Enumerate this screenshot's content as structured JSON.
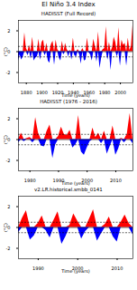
{
  "title": "El Niño 3.4 Index",
  "chart_data": [
    {
      "type": "area",
      "title": "HADISST (Full Record)",
      "x_label": "Time (years)",
      "y_label": "(°C)",
      "x": [
        1870,
        1872,
        1874,
        1876,
        1878,
        1880,
        1882,
        1884,
        1886,
        1888,
        1890,
        1892,
        1894,
        1896,
        1898,
        1900,
        1902,
        1904,
        1906,
        1908,
        1910,
        1912,
        1914,
        1916,
        1918,
        1920,
        1922,
        1924,
        1926,
        1928,
        1930,
        1932,
        1934,
        1936,
        1938,
        1940,
        1942,
        1944,
        1946,
        1948,
        1950,
        1952,
        1954,
        1956,
        1958,
        1960,
        1962,
        1964,
        1966,
        1968,
        1970,
        1972,
        1974,
        1976,
        1978,
        1980,
        1982,
        1984,
        1986,
        1988,
        1990,
        1992,
        1994,
        1996,
        1998,
        2000,
        2002,
        2004,
        2006,
        2008,
        2010,
        2012,
        2014,
        2016
      ],
      "values": [
        -0.9,
        -0.3,
        -0.8,
        -0.5,
        1.8,
        0.3,
        -0.4,
        0.6,
        -0.7,
        1.4,
        -0.9,
        -0.6,
        -0.5,
        1.2,
        -0.8,
        0.9,
        1.1,
        -0.4,
        0.8,
        -0.9,
        -1.1,
        0.7,
        1.0,
        -1.3,
        1.1,
        0.2,
        -0.6,
        -0.9,
        1.0,
        -0.3,
        0.8,
        0.2,
        -0.5,
        0.1,
        -0.8,
        1.3,
        -0.4,
        -0.5,
        0.2,
        -0.3,
        -1.2,
        0.3,
        -0.9,
        -0.8,
        1.3,
        -0.1,
        -0.3,
        -0.9,
        1.2,
        0.5,
        -1.0,
        1.9,
        -1.6,
        -0.6,
        0.2,
        0.3,
        2.4,
        -0.8,
        0.9,
        -1.8,
        0.4,
        1.4,
        0.9,
        -0.5,
        2.3,
        -1.4,
        1.1,
        0.6,
        0.8,
        -1.4,
        1.3,
        0.1,
        0.5,
        2.5
      ],
      "thresholds": [
        -0.5,
        0.5
      ],
      "colors": [
        "#ff0000",
        "#0000ff"
      ],
      "xlim": [
        1870,
        2016
      ],
      "xticks": [
        1880,
        1900,
        1920,
        1940,
        1960,
        1980,
        2000
      ],
      "ylim": [
        -3,
        3
      ],
      "yticks": [
        -2,
        0,
        2
      ]
    },
    {
      "type": "area",
      "title": "HADISST (1976 - 2016)",
      "x_label": "Time (years)",
      "y_label": "(°C)",
      "x": [
        1976,
        1977,
        1978,
        1979,
        1980,
        1981,
        1982,
        1983,
        1984,
        1985,
        1986,
        1987,
        1988,
        1989,
        1990,
        1991,
        1992,
        1993,
        1994,
        1995,
        1996,
        1997,
        1998,
        1999,
        2000,
        2001,
        2002,
        2003,
        2004,
        2005,
        2006,
        2007,
        2008,
        2009,
        2010,
        2011,
        2012,
        2013,
        2014,
        2015,
        2016
      ],
      "values": [
        -0.3,
        0.6,
        -0.2,
        0.1,
        0.2,
        -0.3,
        2.1,
        0.6,
        -0.6,
        -0.7,
        0.8,
        1.4,
        -1.8,
        -0.5,
        0.3,
        1.2,
        0.5,
        0.4,
        0.9,
        -0.8,
        -0.5,
        2.3,
        -1.2,
        -1.5,
        -0.8,
        -0.2,
        1.1,
        0.2,
        0.6,
        -0.4,
        0.8,
        -1.4,
        -0.7,
        1.3,
        -1.5,
        -0.9,
        0.1,
        -0.3,
        0.5,
        2.5,
        -0.4
      ],
      "thresholds": [
        -0.5,
        0.5
      ],
      "colors": [
        "#ff0000",
        "#0000ff"
      ],
      "xlim": [
        1976,
        2016
      ],
      "xticks": [
        1980,
        1990,
        2000,
        2010
      ],
      "ylim": [
        -3,
        3
      ],
      "yticks": [
        -2,
        0,
        2
      ]
    },
    {
      "type": "area",
      "title": "v2.LR.historical.smbb_0141",
      "x_label": "Time (years)",
      "y_label": "(°C)",
      "x": [
        1985,
        1986,
        1987,
        1988,
        1989,
        1990,
        1991,
        1992,
        1993,
        1994,
        1995,
        1996,
        1997,
        1998,
        1999,
        2000,
        2001,
        2002,
        2003,
        2004,
        2005,
        2006,
        2007,
        2008,
        2009,
        2010,
        2011,
        2012,
        2013,
        2014
      ],
      "values": [
        -0.5,
        0.9,
        1.6,
        -1.2,
        -0.8,
        0.4,
        1.1,
        -0.3,
        -1.0,
        0.7,
        1.5,
        -1.6,
        -0.9,
        0.2,
        1.3,
        0.6,
        -1.1,
        -0.4,
        0.8,
        1.7,
        -1.3,
        -0.6,
        0.3,
        1.0,
        -0.9,
        -1.4,
        0.5,
        1.2,
        0.4,
        -0.7
      ],
      "thresholds": [
        -0.5,
        0.5
      ],
      "colors": [
        "#ff0000",
        "#0000ff"
      ],
      "xlim": [
        1985,
        2014
      ],
      "xticks": [
        1990,
        2000,
        2010
      ],
      "ylim": [
        -3,
        3
      ],
      "yticks": [
        -2,
        0,
        2
      ]
    }
  ]
}
